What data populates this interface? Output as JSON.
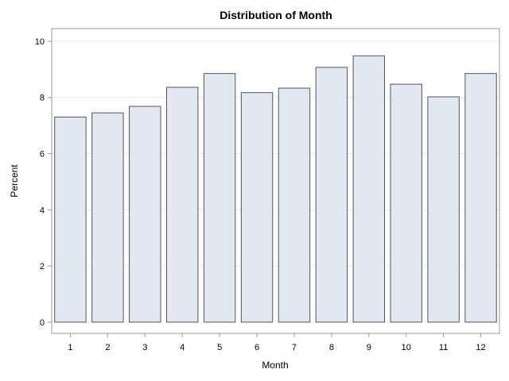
{
  "chart_data": {
    "type": "bar",
    "title": "Distribution of Month",
    "xlabel": "Month",
    "ylabel": "Percent",
    "categories": [
      "1",
      "2",
      "3",
      "4",
      "5",
      "6",
      "7",
      "8",
      "9",
      "10",
      "11",
      "12"
    ],
    "values": [
      7.3,
      7.45,
      7.68,
      8.36,
      8.85,
      8.17,
      8.33,
      9.07,
      9.48,
      8.47,
      8.02,
      8.85
    ],
    "ylim": [
      -0.4,
      10.45
    ],
    "yticks": [
      0,
      2,
      4,
      6,
      8,
      10
    ],
    "grid": true,
    "legend": "none",
    "colors": {
      "bar_fill": "#e3e7f1",
      "bar_stroke": "#555555",
      "grid": "#e6e6e6",
      "frame": "#9a9a9a",
      "text": "#000000"
    }
  }
}
